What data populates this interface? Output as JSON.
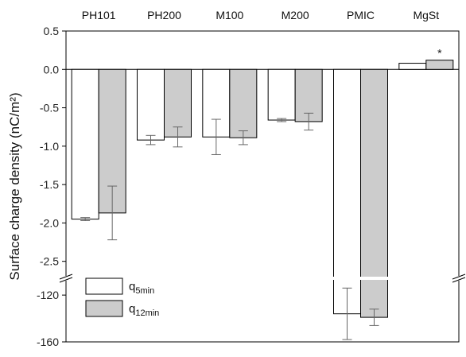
{
  "chart_data": {
    "type": "bar",
    "categories": [
      "PH101",
      "PH200",
      "M100",
      "M200",
      "PMIC",
      "MgSt"
    ],
    "ylabel": "Surface charge density (nC/m²)",
    "axis_break": true,
    "upper_segment": {
      "ylim": [
        -2.7,
        0.5
      ],
      "ticks": [
        0.5,
        0.0,
        -0.5,
        -1.0,
        -1.5,
        -2.0,
        -2.5
      ],
      "tick_labels": [
        "0.5",
        "0.0",
        "-0.5",
        "-1.0",
        "-1.5",
        "-2.0",
        "-2.5"
      ]
    },
    "lower_segment": {
      "ylim": [
        -160,
        -107
      ],
      "ticks": [
        -120,
        -160
      ],
      "tick_labels": [
        "-120",
        "-160"
      ]
    },
    "legend_position": "bottom-left",
    "series": [
      {
        "name": "q",
        "name_subscript": "5min",
        "color": "#ffffff",
        "values": [
          -1.95,
          -0.92,
          -0.88,
          -0.66,
          -136,
          0.08
        ],
        "errors": [
          0.02,
          0.06,
          0.23,
          0.02,
          22,
          0
        ]
      },
      {
        "name": "q",
        "name_subscript": "12min",
        "color": "#cccccc",
        "values": [
          -1.87,
          -0.88,
          -0.89,
          -0.68,
          -139,
          0.12
        ],
        "errors": [
          0.35,
          0.13,
          0.09,
          0.11,
          7,
          0
        ]
      }
    ],
    "annotations": [
      {
        "category": "MgSt",
        "text": "*"
      }
    ]
  }
}
